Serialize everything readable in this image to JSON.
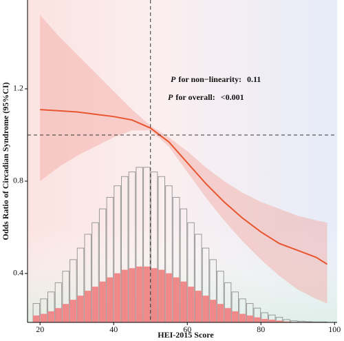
{
  "chart_data": {
    "type": "spline",
    "xlabel": "HEI-2015 Score",
    "ylabel": "Odds Ratio of Circadian Syndrome (95%CI)",
    "xlim": [
      16.6,
      100.7
    ],
    "ylim": [
      0.188,
      1.585
    ],
    "xticks": [
      20,
      40,
      60,
      80,
      100
    ],
    "yticks": [
      0.4,
      0.8,
      1.2
    ],
    "ref_x": 50,
    "ref_y": 1.0,
    "annotations": [
      {
        "prefix": "P",
        "text": "for non−linearity:",
        "value": "0.11"
      },
      {
        "prefix": "P",
        "text": "for overall:",
        "value": "<0.001"
      }
    ],
    "x": [
      20,
      25,
      30,
      35,
      40,
      45,
      50,
      55,
      60,
      65,
      70,
      75,
      80,
      85,
      90,
      95,
      98
    ],
    "series": [
      {
        "color": "#e8552f",
        "band_color": "#f2a7a0",
        "values": [
          1.11,
          1.105,
          1.1,
          1.09,
          1.08,
          1.065,
          1.03,
          0.97,
          0.88,
          0.79,
          0.71,
          0.64,
          0.58,
          0.53,
          0.5,
          0.47,
          0.44
        ],
        "upper": [
          1.52,
          1.43,
          1.35,
          1.27,
          1.19,
          1.11,
          1.04,
          0.99,
          0.93,
          0.86,
          0.8,
          0.75,
          0.71,
          0.68,
          0.65,
          0.63,
          0.62
        ],
        "lower": [
          0.8,
          0.86,
          0.91,
          0.95,
          0.99,
          1.02,
          1.02,
          0.95,
          0.84,
          0.73,
          0.63,
          0.54,
          0.46,
          0.39,
          0.33,
          0.29,
          0.27
        ]
      }
    ],
    "histogram": {
      "bins": [
        18,
        20,
        22,
        24,
        26,
        28,
        30,
        32,
        34,
        36,
        38,
        40,
        42,
        44,
        46,
        48,
        50,
        52,
        54,
        56,
        58,
        60,
        62,
        64,
        66,
        68,
        70,
        72,
        74,
        76,
        78,
        80,
        82,
        84,
        86,
        88,
        90,
        92,
        94,
        96,
        98
      ],
      "series": [
        {
          "color": "#999999",
          "values": [
            0.27,
            0.29,
            0.32,
            0.36,
            0.41,
            0.46,
            0.51,
            0.57,
            0.62,
            0.68,
            0.73,
            0.78,
            0.82,
            0.84,
            0.86,
            0.86,
            0.84,
            0.82,
            0.78,
            0.73,
            0.68,
            0.62,
            0.57,
            0.51,
            0.46,
            0.41,
            0.36,
            0.32,
            0.29,
            0.27,
            0.25,
            0.23,
            0.22,
            0.21,
            0.2,
            0.195,
            0.193,
            0.191,
            0.19,
            0.19
          ]
        },
        {
          "color": "#f08a8a",
          "values": [
            0.218,
            0.225,
            0.236,
            0.25,
            0.268,
            0.286,
            0.304,
            0.325,
            0.343,
            0.365,
            0.383,
            0.401,
            0.416,
            0.423,
            0.43,
            0.43,
            0.423,
            0.416,
            0.401,
            0.383,
            0.365,
            0.343,
            0.325,
            0.304,
            0.286,
            0.268,
            0.25,
            0.236,
            0.225,
            0.218,
            0.21,
            0.203,
            0.2,
            0.196,
            0.192,
            0.19,
            0.19,
            0.189,
            0.189,
            0.189
          ]
        }
      ]
    }
  }
}
